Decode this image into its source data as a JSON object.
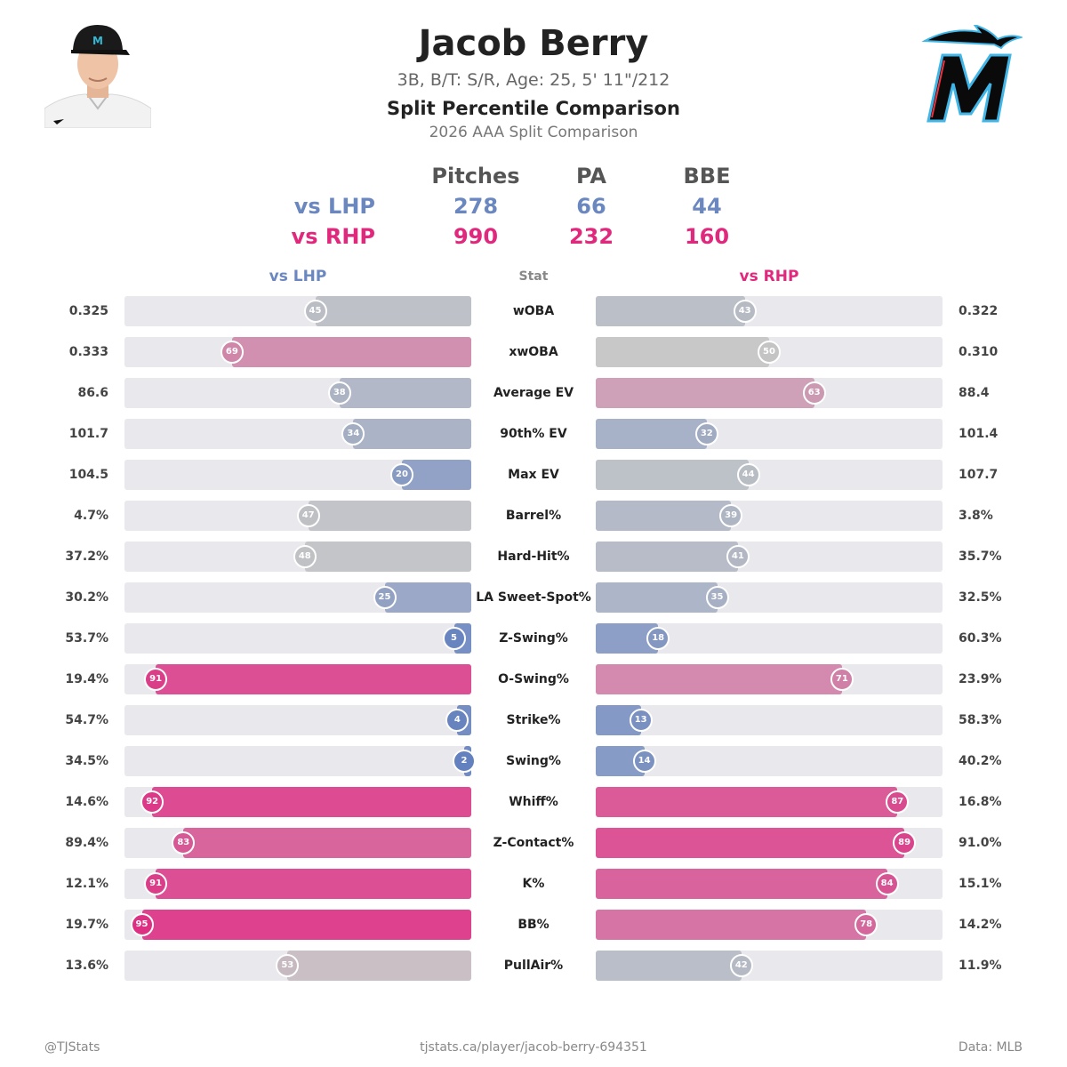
{
  "header": {
    "name": "Jacob Berry",
    "bio": "3B, B/T: S/R, Age: 25, 5' 11\"/212",
    "heading": "Split Percentile Comparison",
    "subheading": "2026 AAA Split Comparison"
  },
  "summary": {
    "columns": [
      "Pitches",
      "PA",
      "BBE"
    ],
    "rows": [
      {
        "label": "vs LHP",
        "values": [
          "278",
          "66",
          "44"
        ]
      },
      {
        "label": "vs RHP",
        "values": [
          "990",
          "232",
          "160"
        ]
      }
    ]
  },
  "columns": {
    "left": "vs LHP",
    "center": "Stat",
    "right": "vs RHP"
  },
  "colors": {
    "lhp": "#6b87c0",
    "rhp": "#e0287d",
    "low": "#5f7ebf",
    "mid": "#c4c4c4",
    "high": "#e0207c"
  },
  "chart_data": {
    "type": "bar",
    "categories": [
      "wOBA",
      "xwOBA",
      "Average EV",
      "90th% EV",
      "Max EV",
      "Barrel%",
      "Hard-Hit%",
      "LA Sweet-Spot%",
      "Z-Swing%",
      "O-Swing%",
      "Strike%",
      "Swing%",
      "Whiff%",
      "Z-Contact%",
      "K%",
      "BB%",
      "PullAir%"
    ],
    "xlim": [
      0,
      100
    ],
    "series": [
      {
        "name": "vs LHP",
        "percentiles": [
          45,
          69,
          38,
          34,
          20,
          47,
          48,
          25,
          5,
          91,
          4,
          2,
          92,
          83,
          91,
          95,
          53
        ],
        "values": [
          "0.325",
          "0.333",
          "86.6",
          "101.7",
          "104.5",
          "4.7%",
          "37.2%",
          "30.2%",
          "53.7%",
          "19.4%",
          "54.7%",
          "34.5%",
          "14.6%",
          "89.4%",
          "12.1%",
          "19.7%",
          "13.6%"
        ]
      },
      {
        "name": "vs RHP",
        "percentiles": [
          43,
          50,
          63,
          32,
          44,
          39,
          41,
          35,
          18,
          71,
          13,
          14,
          87,
          89,
          84,
          78,
          42
        ],
        "values": [
          "0.322",
          "0.310",
          "88.4",
          "101.4",
          "107.7",
          "3.8%",
          "35.7%",
          "32.5%",
          "60.3%",
          "23.9%",
          "58.3%",
          "40.2%",
          "16.8%",
          "91.0%",
          "15.1%",
          "14.2%",
          "11.9%"
        ]
      }
    ]
  },
  "footer": {
    "left": "@TJStats",
    "center": "tjstats.ca/player/jacob-berry-694351",
    "right": "Data: MLB"
  }
}
